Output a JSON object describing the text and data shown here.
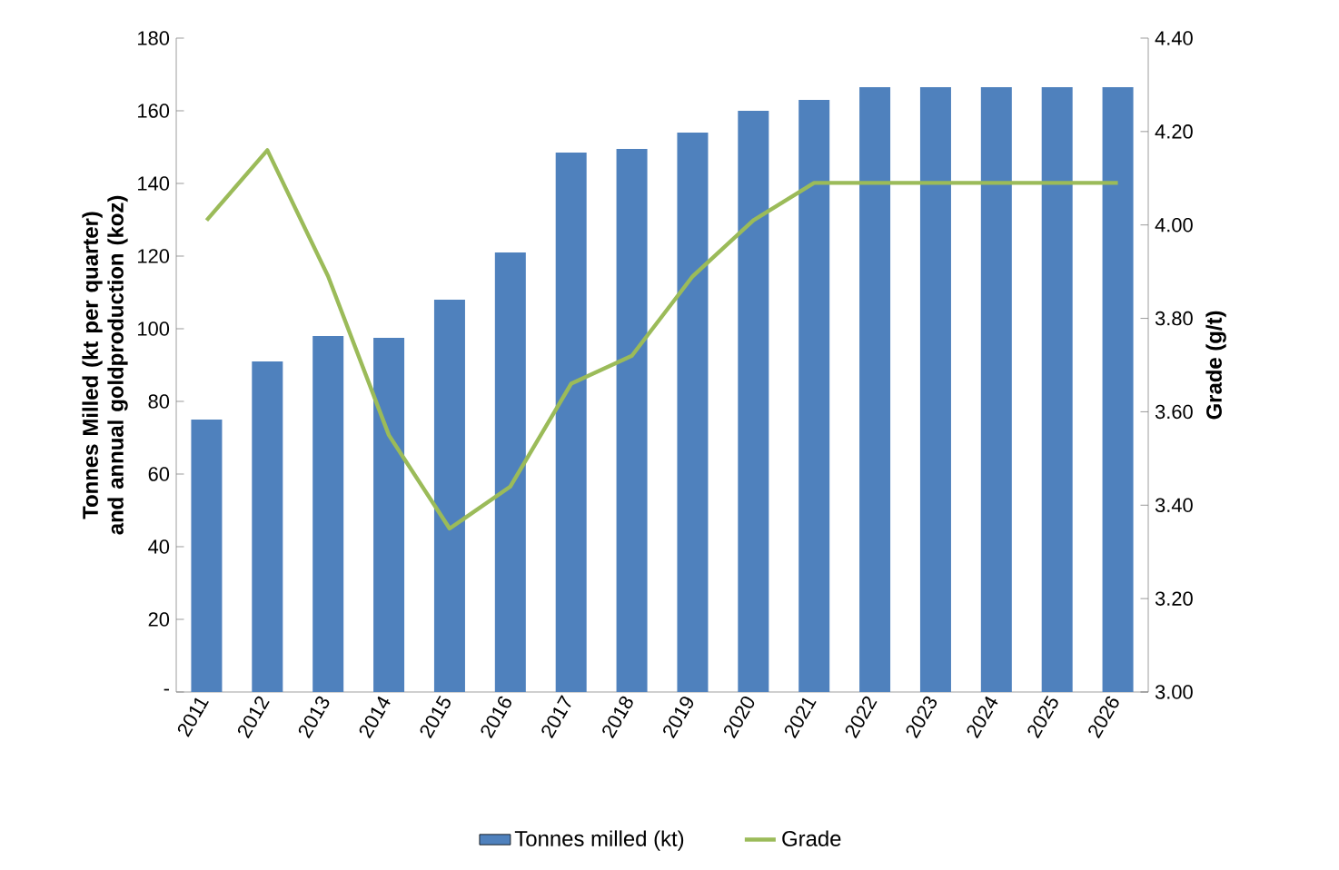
{
  "chart_data": {
    "type": "bar",
    "categories": [
      "2011",
      "2012",
      "2013",
      "2014",
      "2015",
      "2016",
      "2017",
      "2018",
      "2019",
      "2020",
      "2021",
      "2022",
      "2023",
      "2024",
      "2025",
      "2026"
    ],
    "series": [
      {
        "name": "Tonnes milled (kt)",
        "color": "#4f81bd",
        "values": [
          75,
          91,
          98,
          97.5,
          108,
          121,
          148.5,
          149.5,
          154,
          160,
          163,
          166.5,
          166.5,
          166.5,
          166.5,
          166.5
        ]
      },
      {
        "name": "Grade",
        "type": "line",
        "axis": "y2",
        "color": "#9bbb59",
        "values": [
          4.01,
          4.16,
          3.89,
          3.55,
          3.35,
          3.44,
          3.66,
          3.72,
          3.89,
          4.01,
          4.09,
          4.09,
          4.09,
          4.09,
          4.09,
          4.09
        ]
      }
    ],
    "ylabel": "Tonnes Milled (kt per quarter) and annual goldproduction (koz)",
    "y2label": "Grade (g/t)",
    "ylim": [
      0,
      180
    ],
    "yticks": [
      {
        "value": 0,
        "label": "-"
      },
      20,
      40,
      60,
      80,
      100,
      120,
      140,
      160,
      180
    ],
    "y2lim": [
      3,
      4.4
    ],
    "y2ticks": [
      {
        "value": 3,
        "label": "3.00"
      },
      {
        "value": 3.2,
        "label": "3.20"
      },
      {
        "value": 3.4,
        "label": "3.40"
      },
      {
        "value": 3.6,
        "label": "3.60"
      },
      {
        "value": 3.8,
        "label": "3.80"
      },
      {
        "value": 4.0,
        "label": "4.00"
      },
      {
        "value": 4.2,
        "label": "4.20"
      },
      {
        "value": 4.4,
        "label": "4.40"
      }
    ],
    "legend": "bottom"
  }
}
